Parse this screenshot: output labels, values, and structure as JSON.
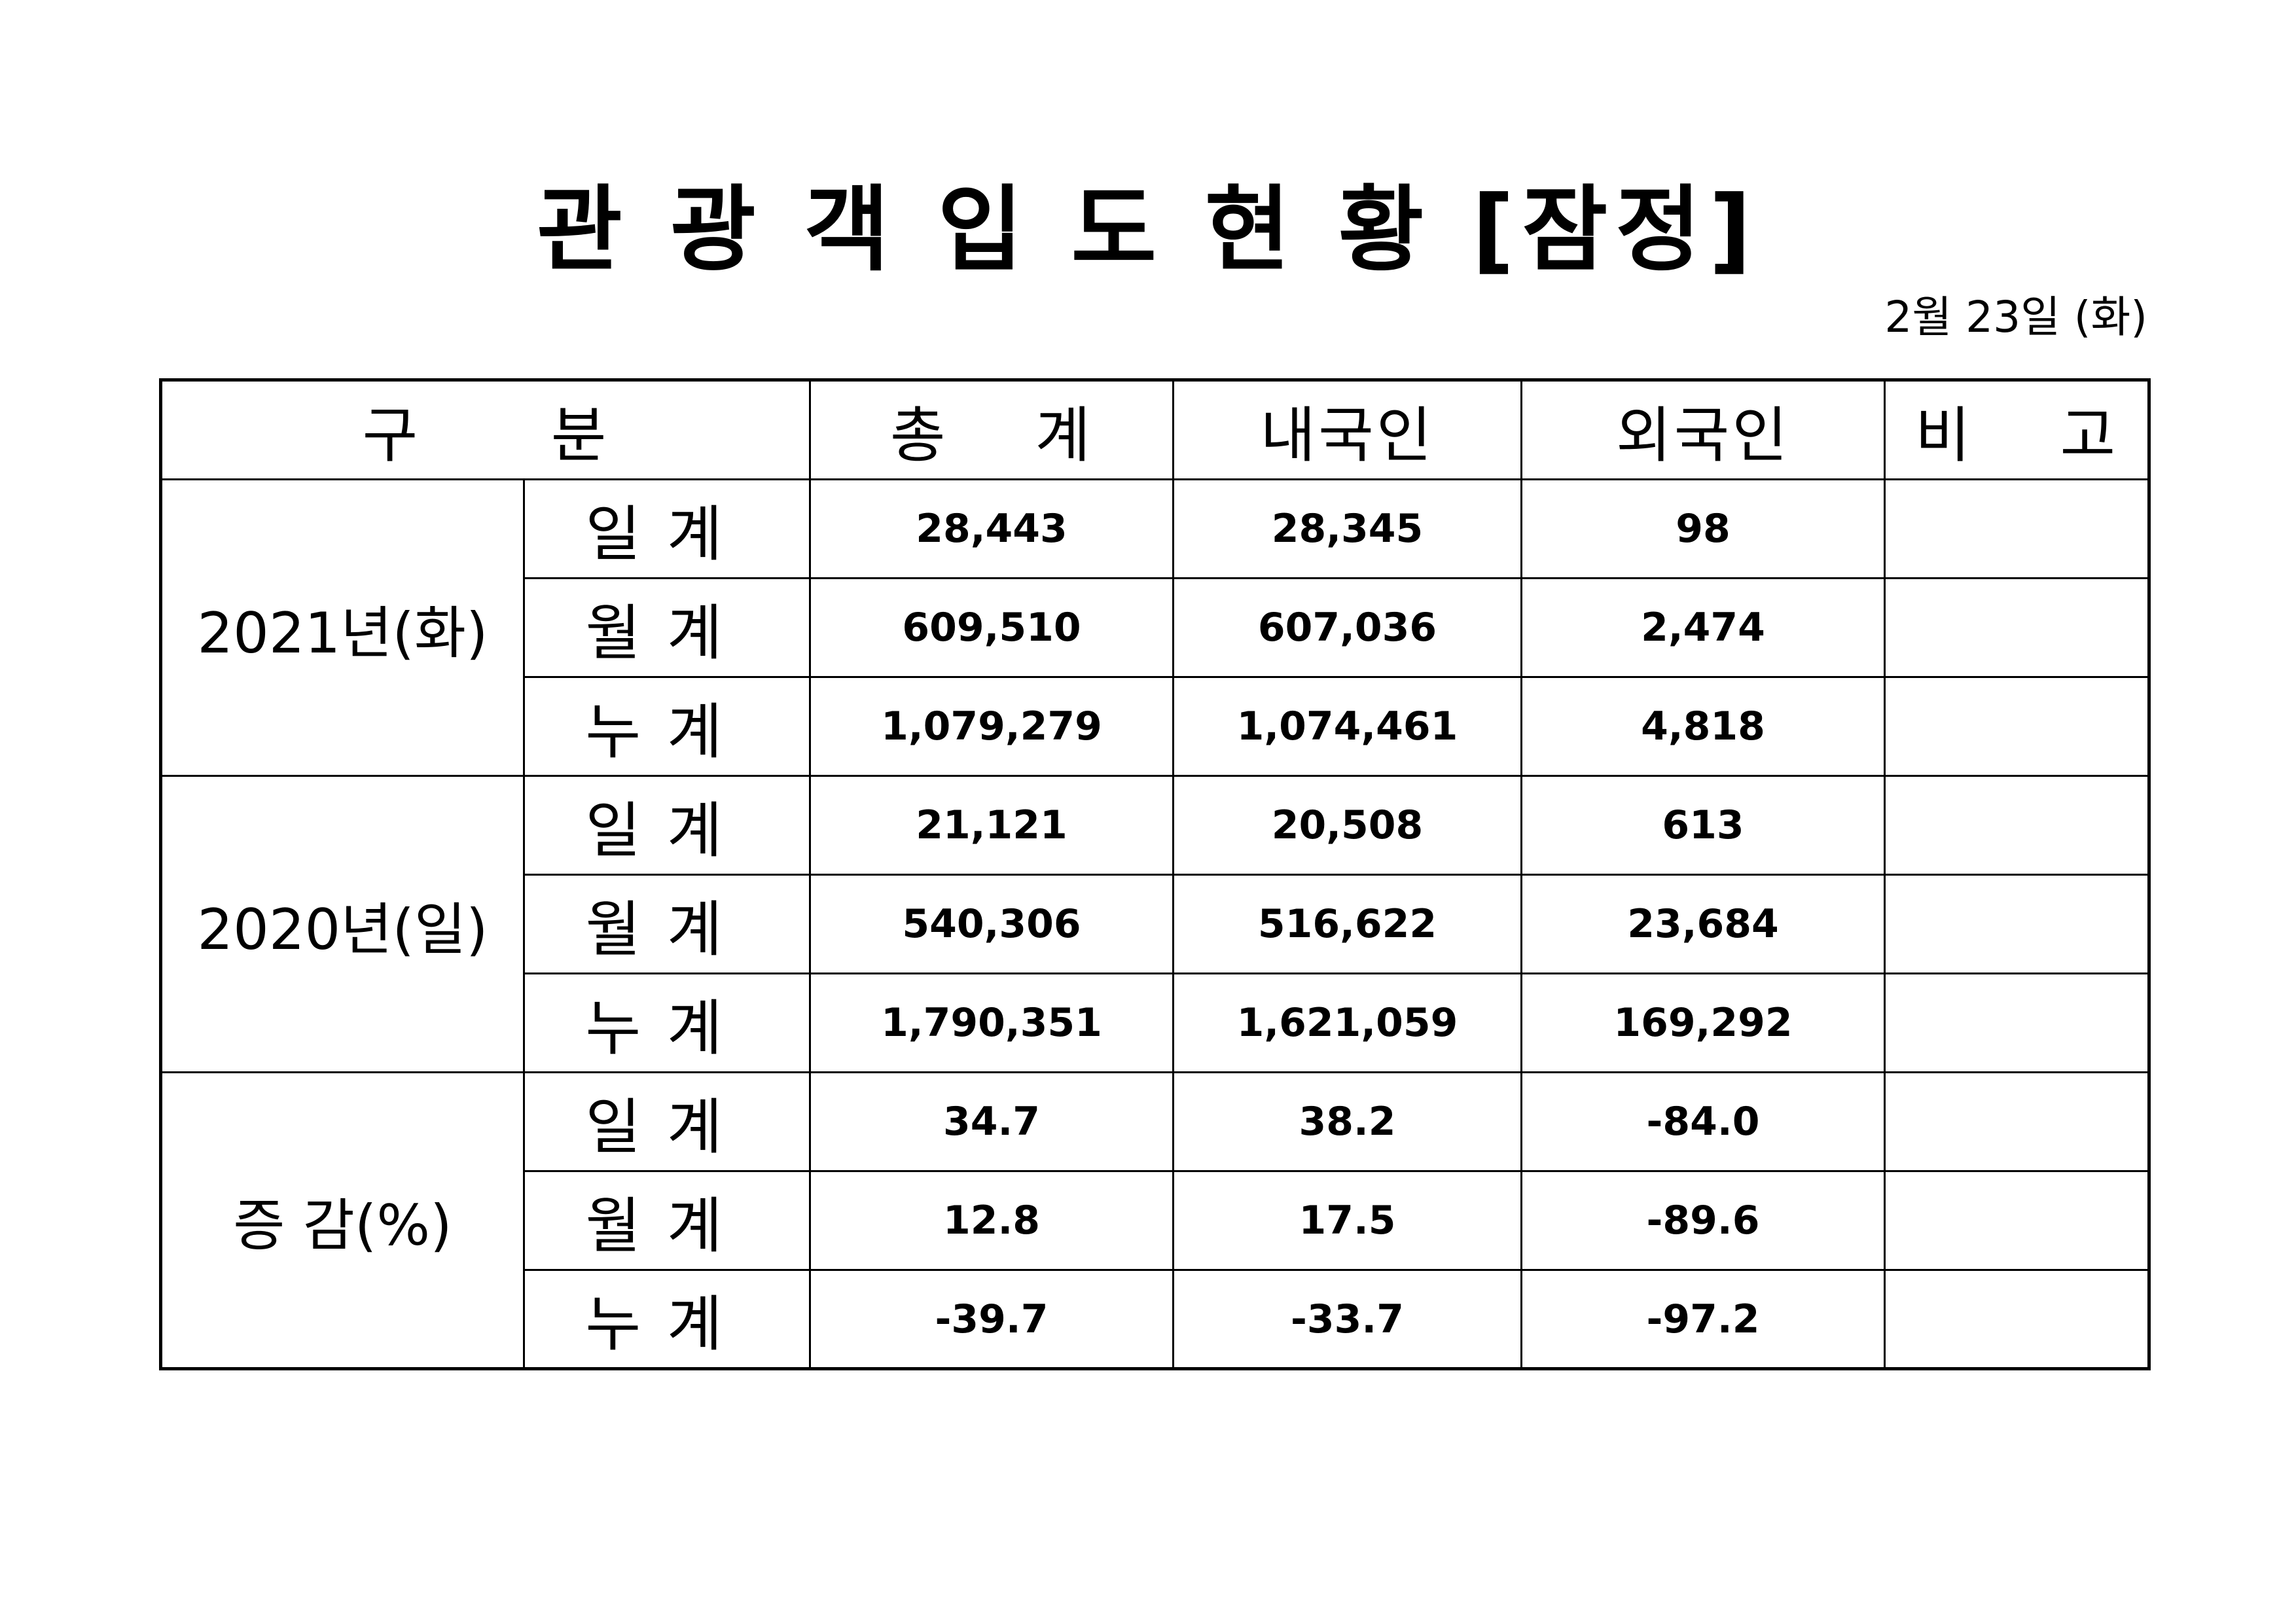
{
  "title": "관 광 객 입 도 현 황 [잠정]",
  "date": "2월 23일 (화)",
  "headers": [
    "구      분",
    "총    계",
    "내국인",
    "외국인",
    "비    고"
  ],
  "groups": [
    {
      "label": "2021년(화)",
      "rows": [
        {
          "sub": "일계",
          "total": "28,443",
          "domestic": "28,345",
          "foreign": "98",
          "note": ""
        },
        {
          "sub": "월계",
          "total": "609,510",
          "domestic": "607,036",
          "foreign": "2,474",
          "note": ""
        },
        {
          "sub": "누계",
          "total": "1,079,279",
          "domestic": "1,074,461",
          "foreign": "4,818",
          "note": ""
        }
      ]
    },
    {
      "label": "2020년(일)",
      "rows": [
        {
          "sub": "일계",
          "total": "21,121",
          "domestic": "20,508",
          "foreign": "613",
          "note": ""
        },
        {
          "sub": "월계",
          "total": "540,306",
          "domestic": "516,622",
          "foreign": "23,684",
          "note": ""
        },
        {
          "sub": "누계",
          "total": "1,790,351",
          "domestic": "1,621,059",
          "foreign": "169,292",
          "note": ""
        }
      ]
    },
    {
      "label": "증 감(%)",
      "rows": [
        {
          "sub": "일계",
          "total": "34.7",
          "domestic": "38.2",
          "foreign": "-84.0",
          "note": ""
        },
        {
          "sub": "월계",
          "total": "12.8",
          "domestic": "17.5",
          "foreign": "-89.6",
          "note": ""
        },
        {
          "sub": "누계",
          "total": "-39.7",
          "domestic": "-33.7",
          "foreign": "-97.2",
          "note": ""
        }
      ]
    }
  ]
}
